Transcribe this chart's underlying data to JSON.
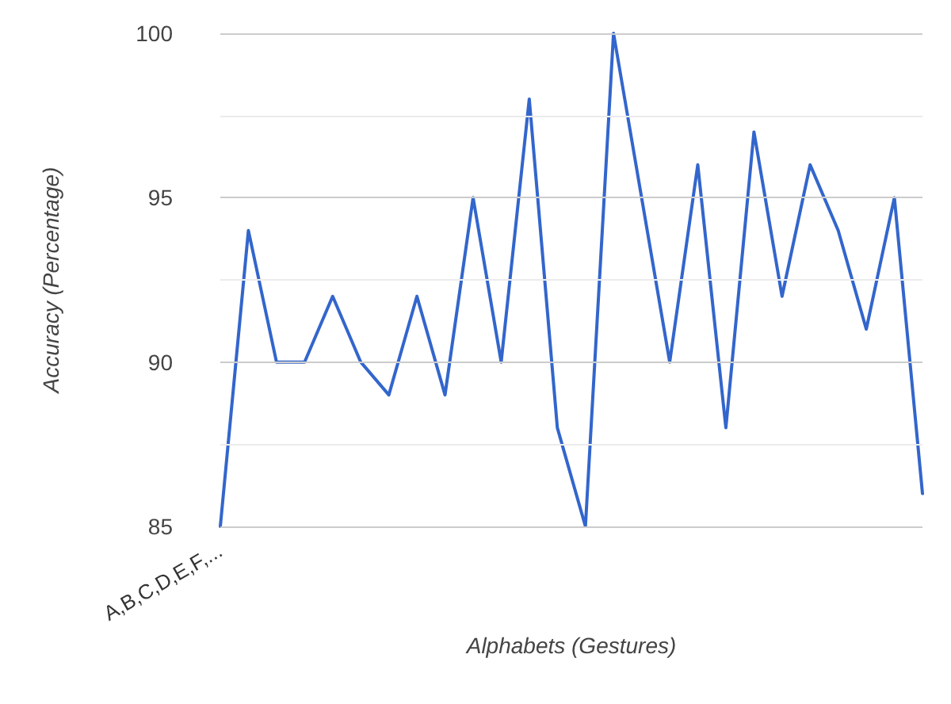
{
  "chart_data": {
    "type": "line",
    "xlabel": "Alphabets (Gestures)",
    "ylabel": "Accuracy (Percentage)",
    "categories": [
      "A,B,C,D,E,F,...",
      null,
      null,
      null,
      null,
      null,
      null,
      null,
      null,
      null,
      null,
      null,
      null,
      null,
      null,
      null,
      null,
      null,
      null,
      null,
      null,
      null,
      null,
      null,
      null,
      null
    ],
    "series": [
      {
        "color": "#3366cc",
        "values": [
          85,
          94,
          90,
          90,
          92,
          90,
          89,
          92,
          89,
          95,
          90,
          98,
          88,
          85,
          100,
          95,
          90,
          96,
          88,
          97,
          92,
          96,
          94,
          91,
          95,
          86
        ]
      }
    ],
    "ylim": [
      85,
      100
    ],
    "yticks": [
      85,
      {
        "value": 87.5,
        "label": null
      },
      90,
      {
        "value": 92.5,
        "label": null
      },
      95,
      {
        "value": 97.5,
        "label": null
      },
      100
    ],
    "grid": "y",
    "marker": "none",
    "line_style": "solid"
  }
}
